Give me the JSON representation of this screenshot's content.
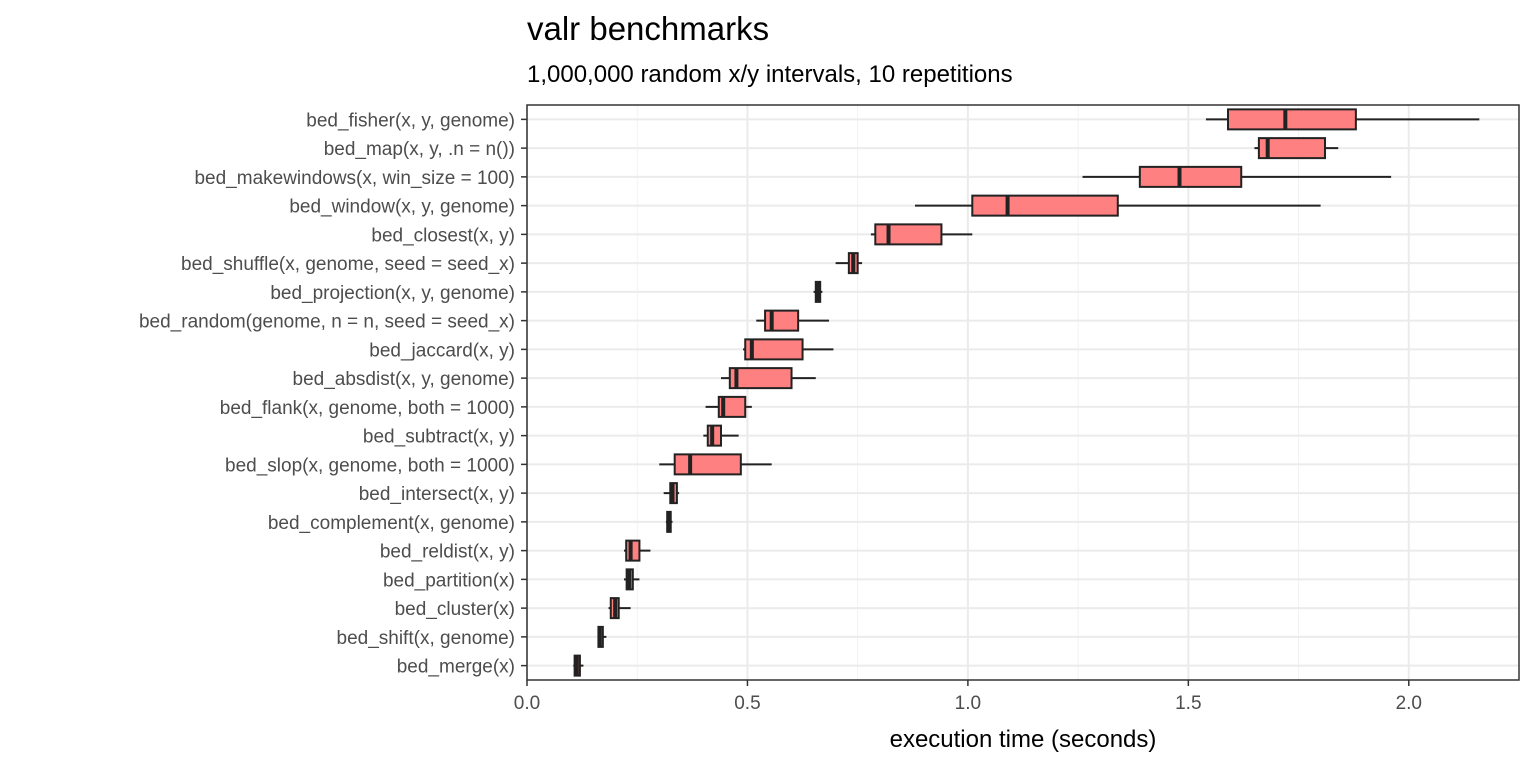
{
  "chart_data": {
    "type": "boxplot",
    "title": "valr benchmarks",
    "subtitle": "1,000,000 random x/y intervals, 10 repetitions",
    "xlabel": "execution time (seconds)",
    "ylabel": "",
    "xlim": [
      0,
      2.25
    ],
    "x_ticks": [
      0.0,
      0.5,
      1.0,
      1.5,
      2.0
    ],
    "x_tick_labels": [
      "0.0",
      "0.5",
      "1.0",
      "1.5",
      "2.0"
    ],
    "grid": true,
    "box_fill": "#ff8080",
    "box_stroke": "#222222",
    "categories": [
      {
        "label": "bed_fisher(x, y, genome)",
        "min": 1.54,
        "q1": 1.59,
        "median": 1.72,
        "q3": 1.88,
        "max": 2.16
      },
      {
        "label": "bed_map(x, y, .n = n())",
        "min": 1.65,
        "q1": 1.66,
        "median": 1.68,
        "q3": 1.81,
        "max": 1.84
      },
      {
        "label": "bed_makewindows(x, win_size = 100)",
        "min": 1.26,
        "q1": 1.39,
        "median": 1.48,
        "q3": 1.62,
        "max": 1.96
      },
      {
        "label": "bed_window(x, y, genome)",
        "min": 0.88,
        "q1": 1.01,
        "median": 1.09,
        "q3": 1.34,
        "max": 1.8
      },
      {
        "label": "bed_closest(x, y)",
        "min": 0.78,
        "q1": 0.79,
        "median": 0.82,
        "q3": 0.94,
        "max": 1.01
      },
      {
        "label": "bed_shuffle(x, genome, seed = seed_x)",
        "min": 0.7,
        "q1": 0.73,
        "median": 0.74,
        "q3": 0.75,
        "max": 0.76
      },
      {
        "label": "bed_projection(x, y, genome)",
        "min": 0.65,
        "q1": 0.655,
        "median": 0.66,
        "q3": 0.665,
        "max": 0.67
      },
      {
        "label": "bed_random(genome, n = n, seed = seed_x)",
        "min": 0.52,
        "q1": 0.54,
        "median": 0.555,
        "q3": 0.615,
        "max": 0.685
      },
      {
        "label": "bed_jaccard(x, y)",
        "min": 0.49,
        "q1": 0.495,
        "median": 0.51,
        "q3": 0.625,
        "max": 0.695
      },
      {
        "label": "bed_absdist(x, y, genome)",
        "min": 0.44,
        "q1": 0.46,
        "median": 0.475,
        "q3": 0.6,
        "max": 0.655
      },
      {
        "label": "bed_flank(x, genome, both = 1000)",
        "min": 0.405,
        "q1": 0.435,
        "median": 0.445,
        "q3": 0.495,
        "max": 0.51
      },
      {
        "label": "bed_subtract(x, y)",
        "min": 0.4,
        "q1": 0.41,
        "median": 0.42,
        "q3": 0.44,
        "max": 0.48
      },
      {
        "label": "bed_slop(x, genome, both = 1000)",
        "min": 0.3,
        "q1": 0.335,
        "median": 0.37,
        "q3": 0.485,
        "max": 0.555
      },
      {
        "label": "bed_intersect(x, y)",
        "min": 0.31,
        "q1": 0.325,
        "median": 0.33,
        "q3": 0.34,
        "max": 0.345
      },
      {
        "label": "bed_complement(x, genome)",
        "min": 0.315,
        "q1": 0.318,
        "median": 0.322,
        "q3": 0.326,
        "max": 0.33
      },
      {
        "label": "bed_reldist(x, y)",
        "min": 0.22,
        "q1": 0.225,
        "median": 0.235,
        "q3": 0.255,
        "max": 0.28
      },
      {
        "label": "bed_partition(x)",
        "min": 0.22,
        "q1": 0.226,
        "median": 0.232,
        "q3": 0.24,
        "max": 0.255
      },
      {
        "label": "bed_cluster(x)",
        "min": 0.185,
        "q1": 0.19,
        "median": 0.2,
        "q3": 0.208,
        "max": 0.235
      },
      {
        "label": "bed_shift(x, genome)",
        "min": 0.16,
        "q1": 0.162,
        "median": 0.165,
        "q3": 0.172,
        "max": 0.18
      },
      {
        "label": "bed_merge(x)",
        "min": 0.105,
        "q1": 0.108,
        "median": 0.113,
        "q3": 0.12,
        "max": 0.128
      }
    ]
  }
}
